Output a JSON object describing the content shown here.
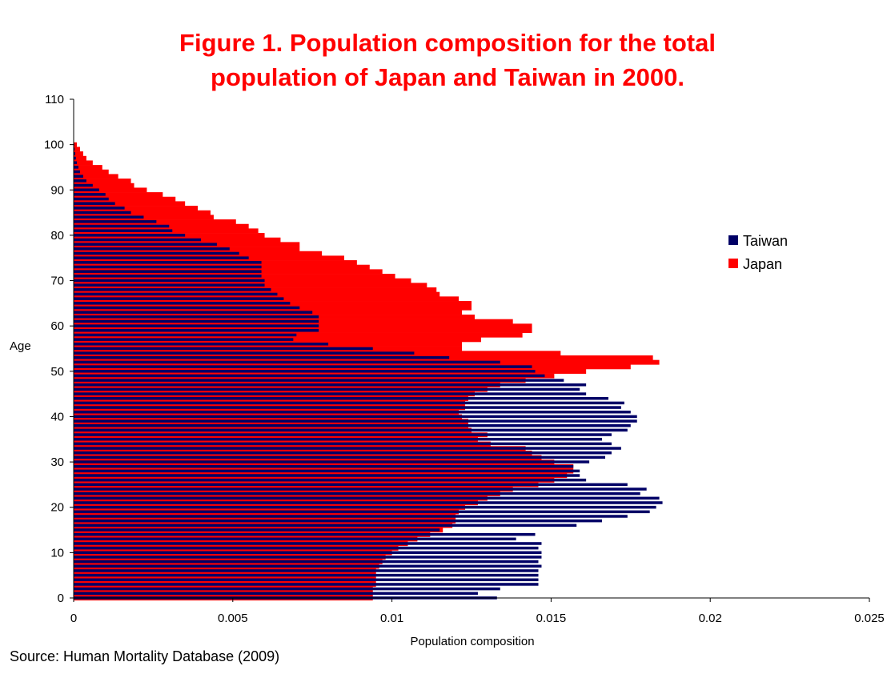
{
  "title_line1": "Figure 1. Population composition for the total",
  "title_line2": "population of Japan and Taiwan in 2000.",
  "source": "Source: Human Mortality Database (2009)",
  "colors": {
    "title": "#ff0000",
    "taiwan": "#000066",
    "japan": "#ff0000",
    "axis": "#000000"
  },
  "chart_data": {
    "type": "bar",
    "orientation": "horizontal",
    "xlabel": "Population composition",
    "ylabel": "Age",
    "xlim": [
      0,
      0.025
    ],
    "ylim": [
      0,
      110
    ],
    "x_ticks": [
      "0",
      "0.005",
      "0.01",
      "0.015",
      "0.02",
      "0.025"
    ],
    "y_ticks": [
      "0",
      "10",
      "20",
      "30",
      "40",
      "50",
      "60",
      "70",
      "80",
      "90",
      "100",
      "110"
    ],
    "legend_position": "right",
    "ages": [
      0,
      1,
      2,
      3,
      4,
      5,
      6,
      7,
      8,
      9,
      10,
      11,
      12,
      13,
      14,
      15,
      16,
      17,
      18,
      19,
      20,
      21,
      22,
      23,
      24,
      25,
      26,
      27,
      28,
      29,
      30,
      31,
      32,
      33,
      34,
      35,
      36,
      37,
      38,
      39,
      40,
      41,
      42,
      43,
      44,
      45,
      46,
      47,
      48,
      49,
      50,
      51,
      52,
      53,
      54,
      55,
      56,
      57,
      58,
      59,
      60,
      61,
      62,
      63,
      64,
      65,
      66,
      67,
      68,
      69,
      70,
      71,
      72,
      73,
      74,
      75,
      76,
      77,
      78,
      79,
      80,
      81,
      82,
      83,
      84,
      85,
      86,
      87,
      88,
      89,
      90,
      91,
      92,
      93,
      94,
      95,
      96,
      97,
      98,
      99,
      100
    ],
    "series": [
      {
        "name": "Taiwan",
        "values": [
          0.0133,
          0.0127,
          0.0134,
          0.0146,
          0.0146,
          0.0146,
          0.0146,
          0.0147,
          0.0146,
          0.0147,
          0.0147,
          0.0146,
          0.0147,
          0.0139,
          0.0145,
          0.0115,
          0.0158,
          0.0166,
          0.0174,
          0.0181,
          0.0183,
          0.0185,
          0.0184,
          0.0178,
          0.018,
          0.0174,
          0.0161,
          0.0159,
          0.0159,
          0.0157,
          0.0162,
          0.0167,
          0.0169,
          0.0172,
          0.0169,
          0.0166,
          0.0169,
          0.0174,
          0.0175,
          0.0177,
          0.0177,
          0.0175,
          0.0172,
          0.0173,
          0.0168,
          0.0161,
          0.0159,
          0.0161,
          0.0154,
          0.0148,
          0.0145,
          0.0144,
          0.0134,
          0.0118,
          0.0107,
          0.0094,
          0.008,
          0.0069,
          0.007,
          0.0077,
          0.0077,
          0.0077,
          0.0077,
          0.0075,
          0.0071,
          0.0068,
          0.0066,
          0.0064,
          0.0062,
          0.006,
          0.006,
          0.0059,
          0.0059,
          0.0059,
          0.0059,
          0.0055,
          0.0052,
          0.0049,
          0.0045,
          0.004,
          0.0035,
          0.0031,
          0.003,
          0.0026,
          0.0022,
          0.0018,
          0.0016,
          0.0013,
          0.0011,
          0.001,
          0.0008,
          0.0006,
          0.0004,
          0.0003,
          0.0002,
          0.00015,
          0.0001,
          7e-05,
          5e-05,
          3e-05,
          2e-05
        ]
      },
      {
        "name": "Japan",
        "values": [
          0.0094,
          0.0094,
          0.0094,
          0.0095,
          0.0095,
          0.0095,
          0.0095,
          0.0096,
          0.0097,
          0.0098,
          0.01,
          0.0102,
          0.0105,
          0.0108,
          0.0112,
          0.0116,
          0.0119,
          0.012,
          0.012,
          0.0121,
          0.0123,
          0.0127,
          0.013,
          0.0134,
          0.0138,
          0.0146,
          0.0151,
          0.0155,
          0.0157,
          0.0157,
          0.0151,
          0.0147,
          0.0144,
          0.0142,
          0.0131,
          0.0127,
          0.013,
          0.0125,
          0.0124,
          0.0124,
          0.0122,
          0.0121,
          0.0123,
          0.0123,
          0.0124,
          0.0126,
          0.013,
          0.0134,
          0.0142,
          0.0151,
          0.0161,
          0.0175,
          0.0184,
          0.0182,
          0.0153,
          0.0122,
          0.0122,
          0.0128,
          0.0141,
          0.0144,
          0.0144,
          0.0138,
          0.0126,
          0.0122,
          0.0125,
          0.0125,
          0.0121,
          0.0115,
          0.0114,
          0.0111,
          0.0106,
          0.0101,
          0.0097,
          0.0093,
          0.0089,
          0.0085,
          0.0078,
          0.0071,
          0.0071,
          0.0065,
          0.006,
          0.0058,
          0.0055,
          0.0051,
          0.0044,
          0.0043,
          0.0039,
          0.0035,
          0.0032,
          0.0028,
          0.0023,
          0.0019,
          0.0018,
          0.0014,
          0.0011,
          0.0009,
          0.0006,
          0.0004,
          0.0003,
          0.0002,
          0.0001
        ]
      }
    ]
  }
}
